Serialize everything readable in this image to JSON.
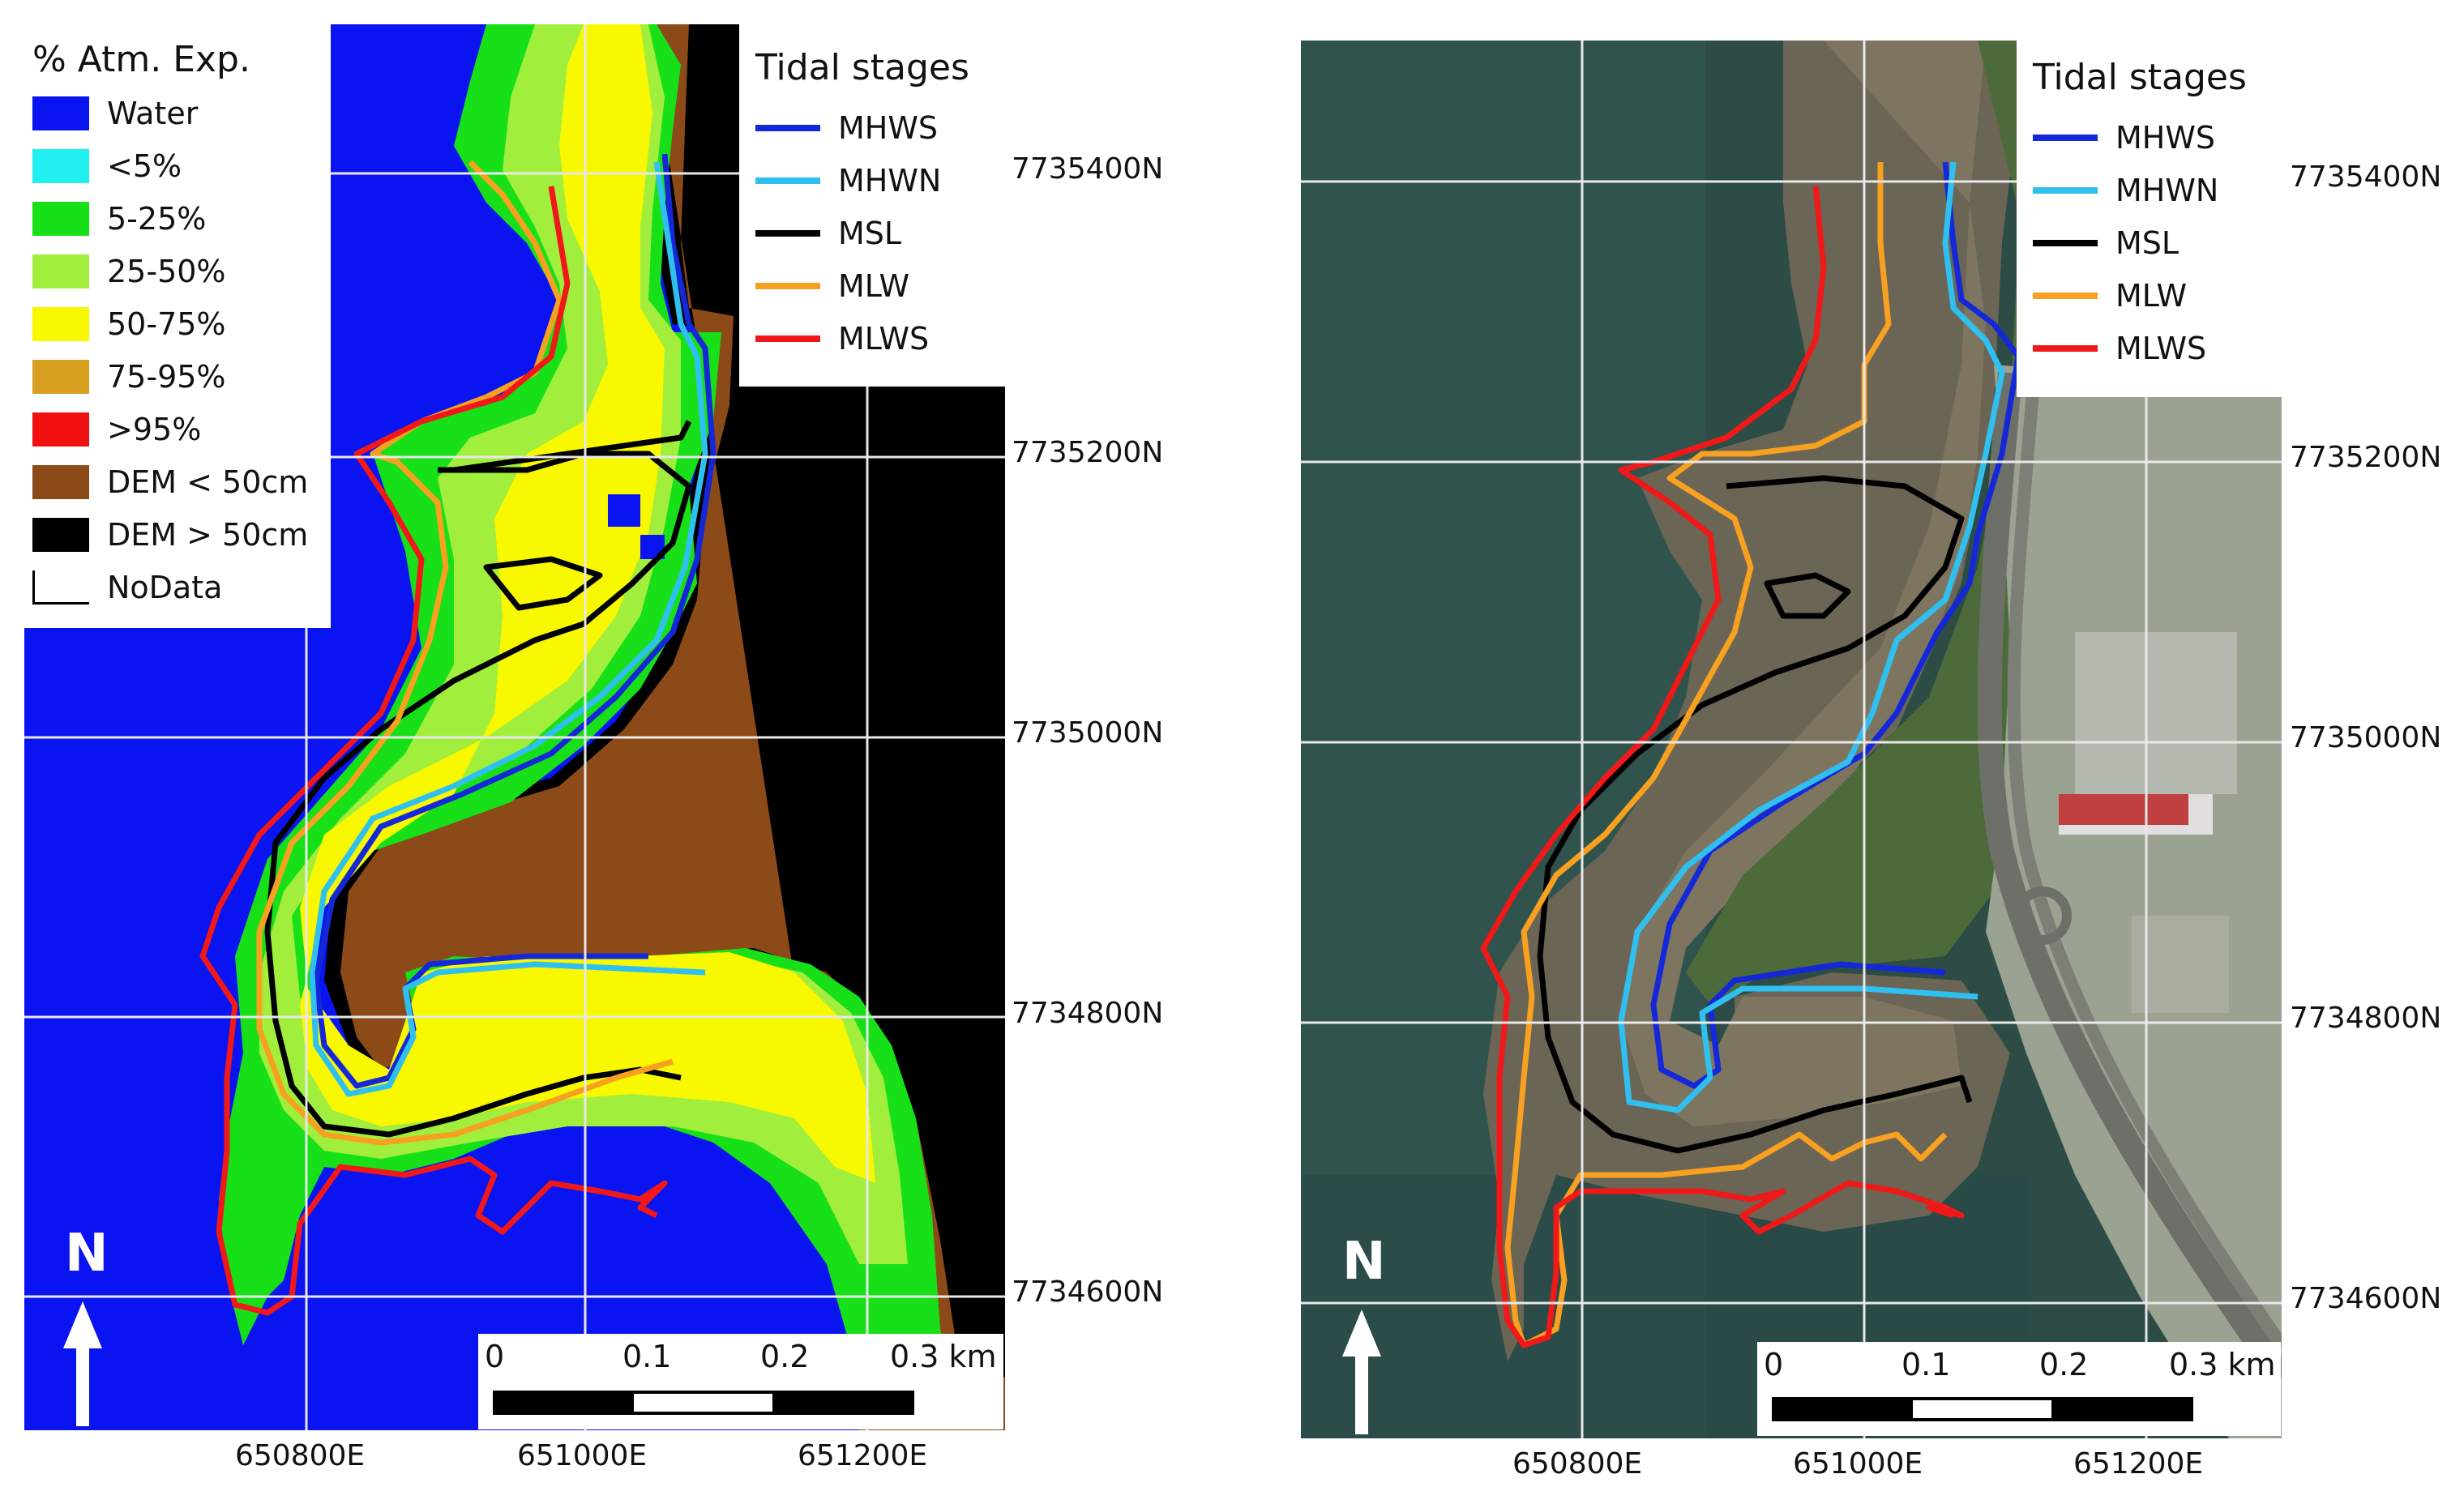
{
  "left_panel": {
    "legend": {
      "title": "% Atm. Exp.",
      "items": [
        {
          "label": "Water",
          "color": "#0a14f0"
        },
        {
          "label": "<5%",
          "color": "#22f0f0"
        },
        {
          "label": "5-25%",
          "color": "#18e018"
        },
        {
          "label": "25-50%",
          "color": "#a2ee3c"
        },
        {
          "label": "50-75%",
          "color": "#f8f800"
        },
        {
          "label": "75-95%",
          "color": "#d8a020"
        },
        {
          "label": ">95%",
          "color": "#f01010"
        },
        {
          "label": "DEM < 50cm",
          "color": "#8b4a18"
        },
        {
          "label": "DEM > 50cm",
          "color": "#000000"
        },
        {
          "label": "NoData",
          "color": "#ffffff"
        }
      ]
    }
  },
  "tidal_legend": {
    "title": "Tidal stages",
    "items": [
      {
        "label": "MHWS",
        "color": "#1428d8"
      },
      {
        "label": "MHWN",
        "color": "#30c0f0"
      },
      {
        "label": "MSL",
        "color": "#000000"
      },
      {
        "label": "MLW",
        "color": "#f8a020"
      },
      {
        "label": "MLWS",
        "color": "#f01818"
      }
    ]
  },
  "northings": [
    "7735400N",
    "7735200N",
    "7735000N",
    "7734800N",
    "7734600N"
  ],
  "eastings": [
    "650800E",
    "651000E",
    "651200E"
  ],
  "scale_bar": {
    "labels": [
      "0",
      "0.1",
      "0.2",
      "0.3 km"
    ]
  },
  "north_arrow": {
    "label": "N"
  }
}
